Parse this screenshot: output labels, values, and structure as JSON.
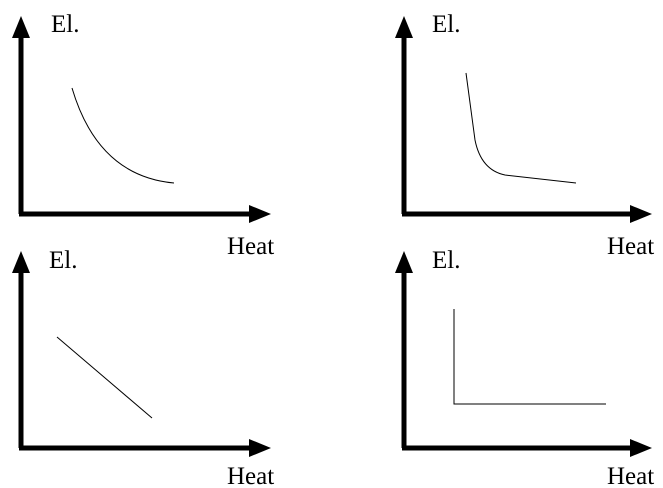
{
  "panels": [
    {
      "y_label": "El.",
      "x_label": "Heat",
      "curve_shape": "convex-decreasing"
    },
    {
      "y_label": "El.",
      "x_label": "Heat",
      "curve_shape": "steep-then-shallow"
    },
    {
      "y_label": "El.",
      "x_label": "Heat",
      "curve_shape": "linear-decreasing"
    },
    {
      "y_label": "El.",
      "x_label": "Heat",
      "curve_shape": "right-angle"
    }
  ]
}
